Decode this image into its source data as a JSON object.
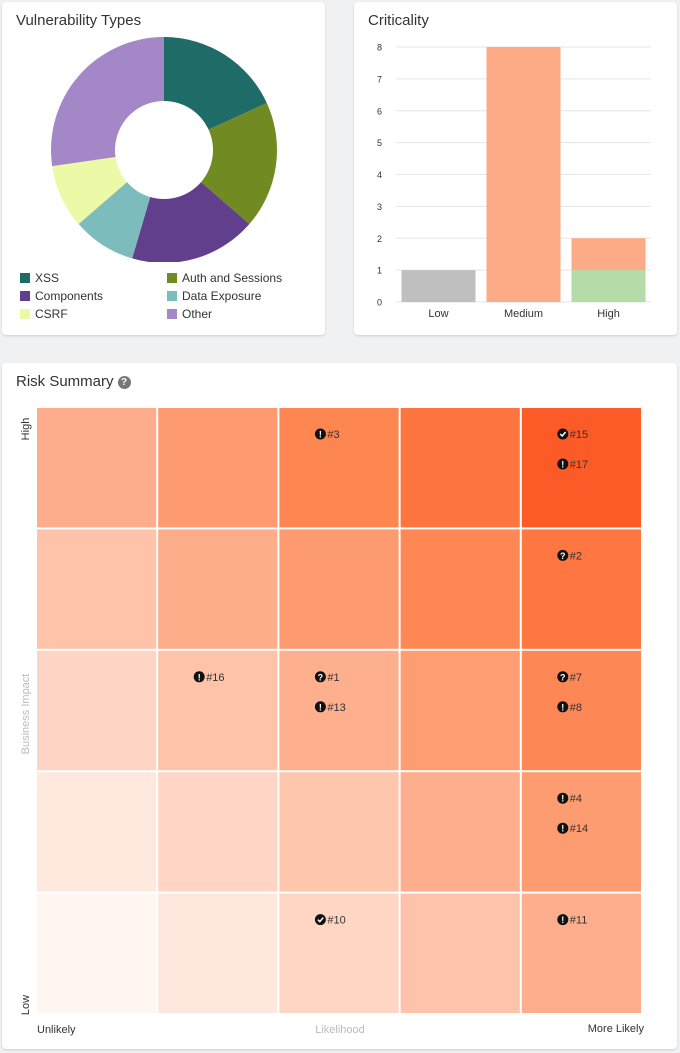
{
  "vuln": {
    "title": "Vulnerability Types"
  },
  "crit": {
    "title": "Criticality"
  },
  "risk": {
    "title": "Risk Summary",
    "help_icon": "?",
    "y_high": "High",
    "y_low": "Low",
    "y_label": "Business Impact",
    "x_left": "Unlikely",
    "x_mid": "Likelihood",
    "x_right": "More Likely"
  },
  "chart_data": [
    {
      "type": "pie",
      "title": "Vulnerability Types",
      "donut": true,
      "categories": [
        "XSS",
        "Auth and Sessions",
        "Components",
        "Data Exposure",
        "CSRF",
        "Other"
      ],
      "values": [
        2,
        2,
        2,
        1,
        1,
        3
      ],
      "colors": [
        "#1f6b68",
        "#728a22",
        "#623f8c",
        "#7cbcbc",
        "#ecf9a6",
        "#a487c7"
      ],
      "legend": "bottom"
    },
    {
      "type": "bar",
      "title": "Criticality",
      "stacked": true,
      "categories": [
        "Low",
        "Medium",
        "High"
      ],
      "ylim": [
        0,
        8
      ],
      "yticks": [
        0,
        1,
        2,
        3,
        4,
        5,
        6,
        7,
        8
      ],
      "grid": true,
      "series": [
        {
          "values": [
            1,
            8,
            1
          ],
          "colors": [
            "#bfbfbf",
            "#fdaa86",
            "#b5dba8"
          ]
        },
        {
          "values": [
            0,
            0,
            1
          ],
          "colors": [
            "#bfbfbf",
            "#fdaa86",
            "#fdaa86"
          ]
        }
      ]
    },
    {
      "type": "heatmap",
      "title": "Risk Summary",
      "xlabel": "Likelihood",
      "ylabel": "Business Impact",
      "x_range_labels": [
        "Unlikely",
        "More Likely"
      ],
      "y_range_labels": [
        "Low",
        "High"
      ],
      "cell_colors": [
        [
          "#fdad8b",
          "#fd9a6f",
          "#fd8651",
          "#fe7540",
          "#fc5b27"
        ],
        [
          "#fec3a9",
          "#fdad8a",
          "#fd9a70",
          "#fe8754",
          "#fe7740"
        ],
        [
          "#fed5c4",
          "#fec3a9",
          "#fdaf8e",
          "#fe9c72",
          "#fe8756"
        ],
        [
          "#ffe8dd",
          "#ffd5c5",
          "#fec6ad",
          "#fdaf8d",
          "#fe9c71"
        ],
        [
          "#fff5f1",
          "#fee8de",
          "#ffd6c4",
          "#fec3aa",
          "#feae8c"
        ]
      ],
      "items": [
        {
          "label": "#3",
          "icon": "exclamation-icon",
          "row": 0,
          "col": 2
        },
        {
          "label": "#15",
          "icon": "check-icon",
          "row": 0,
          "col": 4
        },
        {
          "label": "#17",
          "icon": "exclamation-icon",
          "row": 0,
          "col": 4
        },
        {
          "label": "#2",
          "icon": "question-icon",
          "row": 1,
          "col": 4
        },
        {
          "label": "#16",
          "icon": "exclamation-icon",
          "row": 2,
          "col": 1
        },
        {
          "label": "#1",
          "icon": "question-icon",
          "row": 2,
          "col": 2
        },
        {
          "label": "#13",
          "icon": "exclamation-icon",
          "row": 2,
          "col": 2
        },
        {
          "label": "#7",
          "icon": "question-icon",
          "row": 2,
          "col": 4
        },
        {
          "label": "#8",
          "icon": "exclamation-icon",
          "row": 2,
          "col": 4
        },
        {
          "label": "#4",
          "icon": "exclamation-icon",
          "row": 3,
          "col": 4
        },
        {
          "label": "#14",
          "icon": "exclamation-icon",
          "row": 3,
          "col": 4
        },
        {
          "label": "#10",
          "icon": "check-icon",
          "row": 4,
          "col": 2
        },
        {
          "label": "#11",
          "icon": "exclamation-icon",
          "row": 4,
          "col": 4
        }
      ]
    }
  ]
}
